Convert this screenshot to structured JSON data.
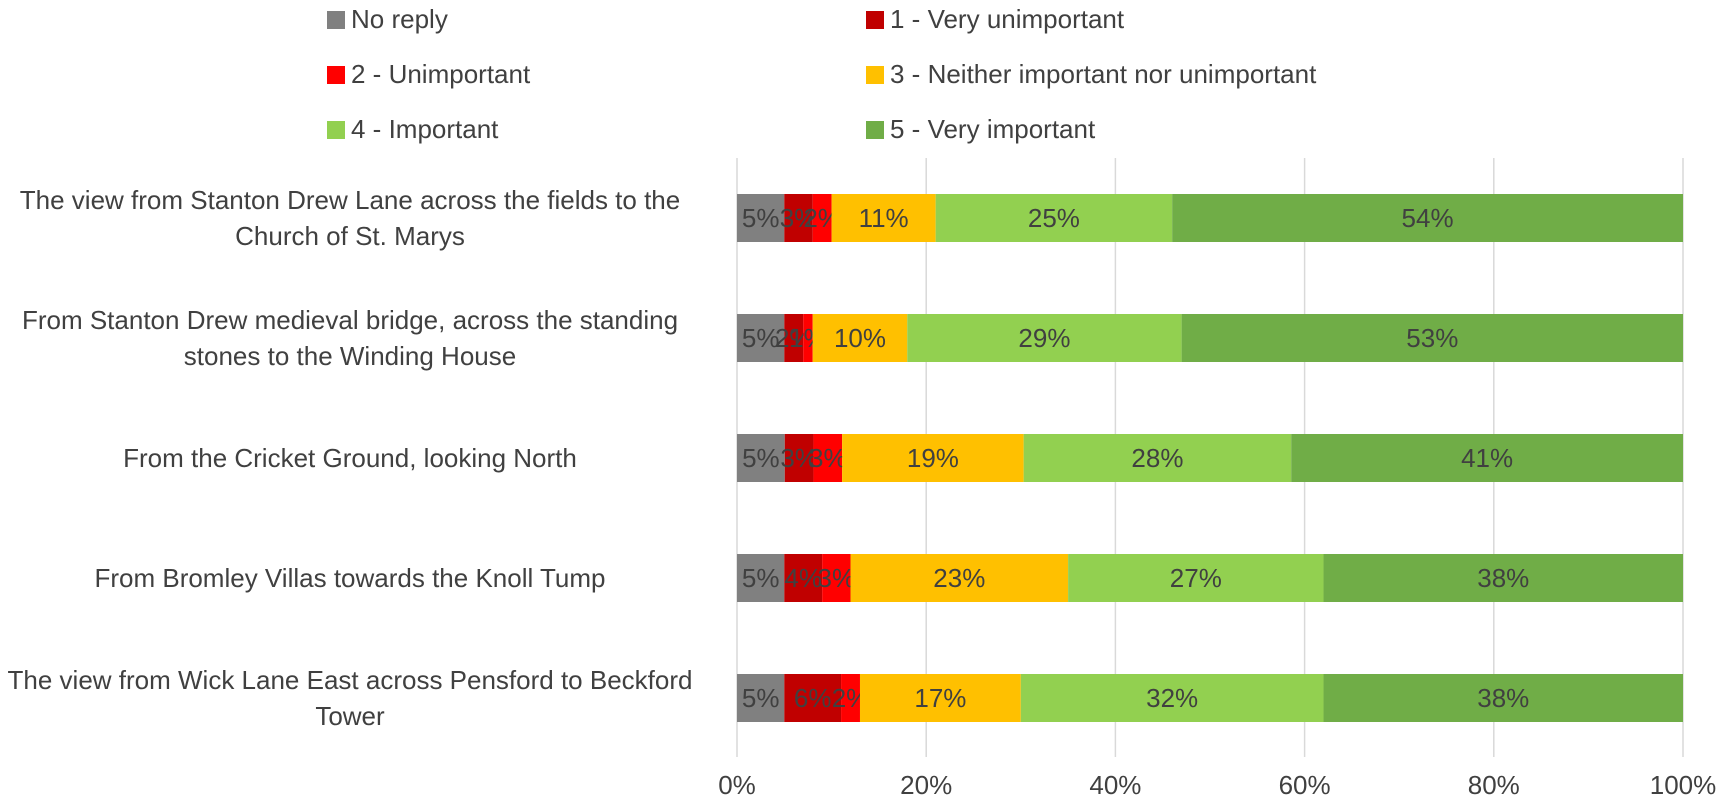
{
  "chart_data": {
    "type": "bar",
    "orientation": "horizontal",
    "stacked": "percent",
    "categories": [
      "The view from Stanton Drew Lane across the fields to the Church of St. Marys",
      "From Stanton Drew medieval bridge, across the standing stones to the Winding House",
      "From the Cricket Ground, looking North",
      "From Bromley Villas towards the Knoll Tump",
      "The view from Wick Lane East across Pensford to Beckford Tower"
    ],
    "series": [
      {
        "name": "No reply",
        "color": "#808080",
        "values": [
          5,
          5,
          5,
          5,
          5
        ],
        "labels": [
          "5%",
          "5%",
          "5%",
          "5%",
          "5%"
        ]
      },
      {
        "name": "1 - Very unimportant",
        "color": "#C00000",
        "values": [
          3,
          2,
          3,
          4,
          6
        ],
        "labels": [
          "3%",
          "2%",
          "3%",
          "4%",
          "6%"
        ]
      },
      {
        "name": "2 - Unimportant",
        "color": "#FF0000",
        "values": [
          2,
          1,
          3,
          3,
          2
        ],
        "labels": [
          "2%",
          "1%",
          "3%",
          "3%",
          "2%"
        ]
      },
      {
        "name": "3 - Neither important nor unimportant",
        "color": "#FFC000",
        "values": [
          11,
          10,
          19,
          23,
          17
        ],
        "labels": [
          "11%",
          "10%",
          "19%",
          "23%",
          "17%"
        ]
      },
      {
        "name": "4 - Important",
        "color": "#92D050",
        "values": [
          25,
          29,
          28,
          27,
          32
        ],
        "labels": [
          "25%",
          "29%",
          "28%",
          "27%",
          "32%"
        ]
      },
      {
        "name": "5 - Very important",
        "color": "#70AD47",
        "values": [
          54,
          53,
          41,
          38,
          38
        ],
        "labels": [
          "54%",
          "53%",
          "41%",
          "38%",
          "38%"
        ]
      }
    ],
    "x_ticks": [
      "0%",
      "20%",
      "40%",
      "60%",
      "80%",
      "100%"
    ],
    "xlim": [
      0,
      100
    ],
    "grid": true,
    "legend_position": "top"
  }
}
